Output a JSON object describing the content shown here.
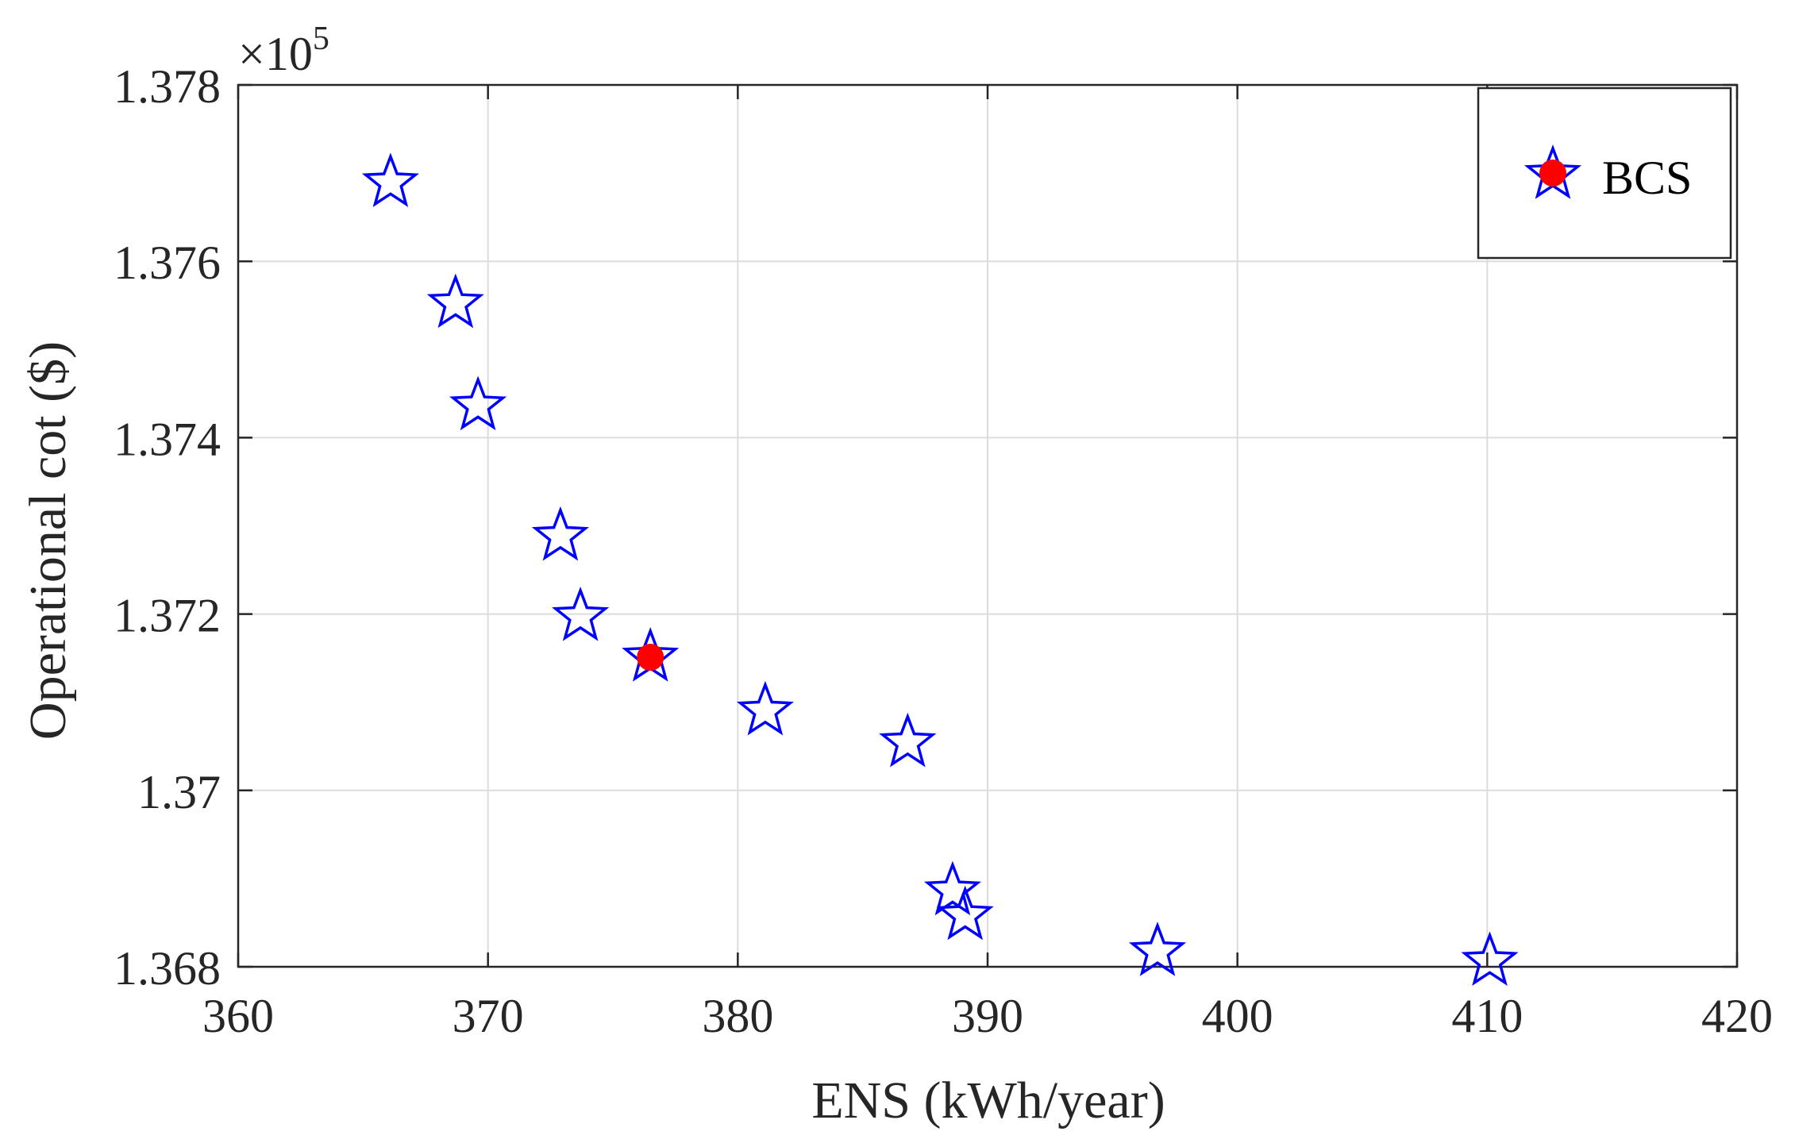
{
  "chart_data": {
    "type": "scatter",
    "title": "",
    "xlabel": "ENS (kWh/year)",
    "ylabel": "Operational cot ($)",
    "y_multiplier_label": "×10",
    "y_multiplier_exponent": "5",
    "xlim": [
      360,
      420
    ],
    "ylim": [
      1.368,
      1.378
    ],
    "x_ticks": [
      360,
      370,
      380,
      390,
      400,
      410,
      420
    ],
    "x_tick_labels": [
      "360",
      "370",
      "380",
      "390",
      "400",
      "410",
      "420"
    ],
    "y_ticks": [
      1.368,
      1.37,
      1.372,
      1.374,
      1.376,
      1.378
    ],
    "y_tick_labels": [
      "1.368",
      "1.37",
      "1.372",
      "1.374",
      "1.376",
      "1.378"
    ],
    "grid": true,
    "legend_position": "top-right",
    "series": [
      {
        "marker": "star",
        "color": "#0000FF",
        "x": [
          366.1,
          368.7,
          369.6,
          372.9,
          373.7,
          376.5,
          381.1,
          386.8,
          388.6,
          389.1,
          396.8,
          410.1
        ],
        "y": [
          1.37689,
          1.37552,
          1.37436,
          1.37288,
          1.37197,
          1.37151,
          1.3709,
          1.37054,
          1.36886,
          1.36858,
          1.36817,
          1.36806
        ]
      },
      {
        "name": "BCS",
        "marker": "filled-circle",
        "color": "#FF0000",
        "x": [
          376.5
        ],
        "y": [
          1.37151
        ]
      }
    ]
  }
}
